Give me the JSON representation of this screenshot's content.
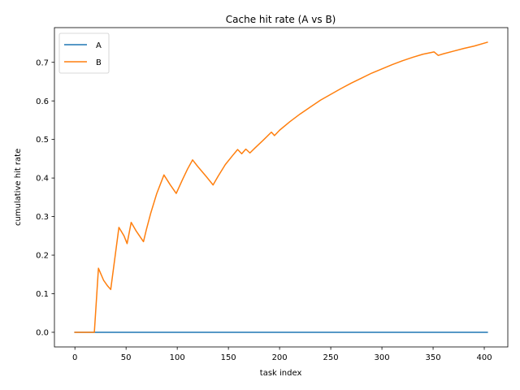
{
  "chart_data": {
    "type": "line",
    "title": "Cache hit rate (A vs B)",
    "xlabel": "task index",
    "ylabel": "cumulative hit rate",
    "xlim": [
      -20,
      423
    ],
    "ylim": [
      -0.038,
      0.79
    ],
    "xticks": [
      0,
      50,
      100,
      150,
      200,
      250,
      300,
      350,
      400
    ],
    "xtick_labels": [
      "0",
      "50",
      "100",
      "150",
      "200",
      "250",
      "300",
      "350",
      "400"
    ],
    "yticks": [
      0.0,
      0.1,
      0.2,
      0.3,
      0.4,
      0.5,
      0.6,
      0.7
    ],
    "ytick_labels": [
      "0.0",
      "0.1",
      "0.2",
      "0.3",
      "0.4",
      "0.5",
      "0.6",
      "0.7"
    ],
    "grid": false,
    "legend_position": "top-left",
    "series": [
      {
        "name": "A",
        "color": "#1f77b4",
        "points": [
          [
            0,
            0.0
          ],
          [
            403,
            0.0
          ]
        ]
      },
      {
        "name": "B",
        "color": "#ff7f0e",
        "points": [
          [
            0,
            0.0
          ],
          [
            19,
            0.0
          ],
          [
            23,
            0.166
          ],
          [
            28,
            0.135
          ],
          [
            32,
            0.12
          ],
          [
            35,
            0.111
          ],
          [
            43,
            0.272
          ],
          [
            48,
            0.25
          ],
          [
            51,
            0.23
          ],
          [
            55,
            0.285
          ],
          [
            60,
            0.262
          ],
          [
            67,
            0.235
          ],
          [
            70,
            0.268
          ],
          [
            74,
            0.308
          ],
          [
            80,
            0.36
          ],
          [
            87,
            0.408
          ],
          [
            93,
            0.383
          ],
          [
            99,
            0.36
          ],
          [
            105,
            0.395
          ],
          [
            110,
            0.423
          ],
          [
            115,
            0.447
          ],
          [
            120,
            0.43
          ],
          [
            128,
            0.405
          ],
          [
            135,
            0.382
          ],
          [
            140,
            0.405
          ],
          [
            147,
            0.435
          ],
          [
            154,
            0.458
          ],
          [
            159,
            0.474
          ],
          [
            163,
            0.463
          ],
          [
            167,
            0.475
          ],
          [
            171,
            0.465
          ],
          [
            176,
            0.478
          ],
          [
            184,
            0.498
          ],
          [
            192,
            0.519
          ],
          [
            195,
            0.51
          ],
          [
            200,
            0.524
          ],
          [
            210,
            0.546
          ],
          [
            220,
            0.566
          ],
          [
            230,
            0.584
          ],
          [
            240,
            0.602
          ],
          [
            250,
            0.617
          ],
          [
            260,
            0.632
          ],
          [
            270,
            0.646
          ],
          [
            280,
            0.659
          ],
          [
            290,
            0.672
          ],
          [
            300,
            0.683
          ],
          [
            310,
            0.694
          ],
          [
            320,
            0.704
          ],
          [
            330,
            0.713
          ],
          [
            340,
            0.721
          ],
          [
            351,
            0.727
          ],
          [
            355,
            0.718
          ],
          [
            360,
            0.722
          ],
          [
            370,
            0.729
          ],
          [
            380,
            0.736
          ],
          [
            390,
            0.742
          ],
          [
            403,
            0.752
          ]
        ]
      }
    ]
  }
}
